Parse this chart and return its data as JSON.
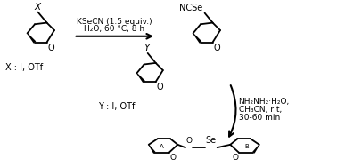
{
  "bg_color": "#ffffff",
  "text_color": "#000000",
  "arrow_color": "#000000",
  "bond_color": "#000000",
  "figsize": [
    3.78,
    1.88
  ],
  "dpi": 100,
  "reaction1_reagents": "KSeCN (1.5 equiv.)",
  "reaction1_conditions": "H₂O, 60 °C, 8 h",
  "reaction2_reagents": "NH₂NH₂·H₂O,",
  "reaction2_conditions1": "CH₃CN, r t,",
  "reaction2_conditions2": "30-60 min",
  "label_X": "X",
  "label_O1": "O",
  "label_X_sub": "X : I, OTf",
  "label_NCSe": "NCSe",
  "label_O2": "O",
  "label_Y": "Y",
  "label_O3": "O",
  "label_Y_sub": "Y : I, OTf",
  "label_O4": "O",
  "label_Se": "Se",
  "label_O5": "O",
  "label_A": "A",
  "label_B": "B"
}
